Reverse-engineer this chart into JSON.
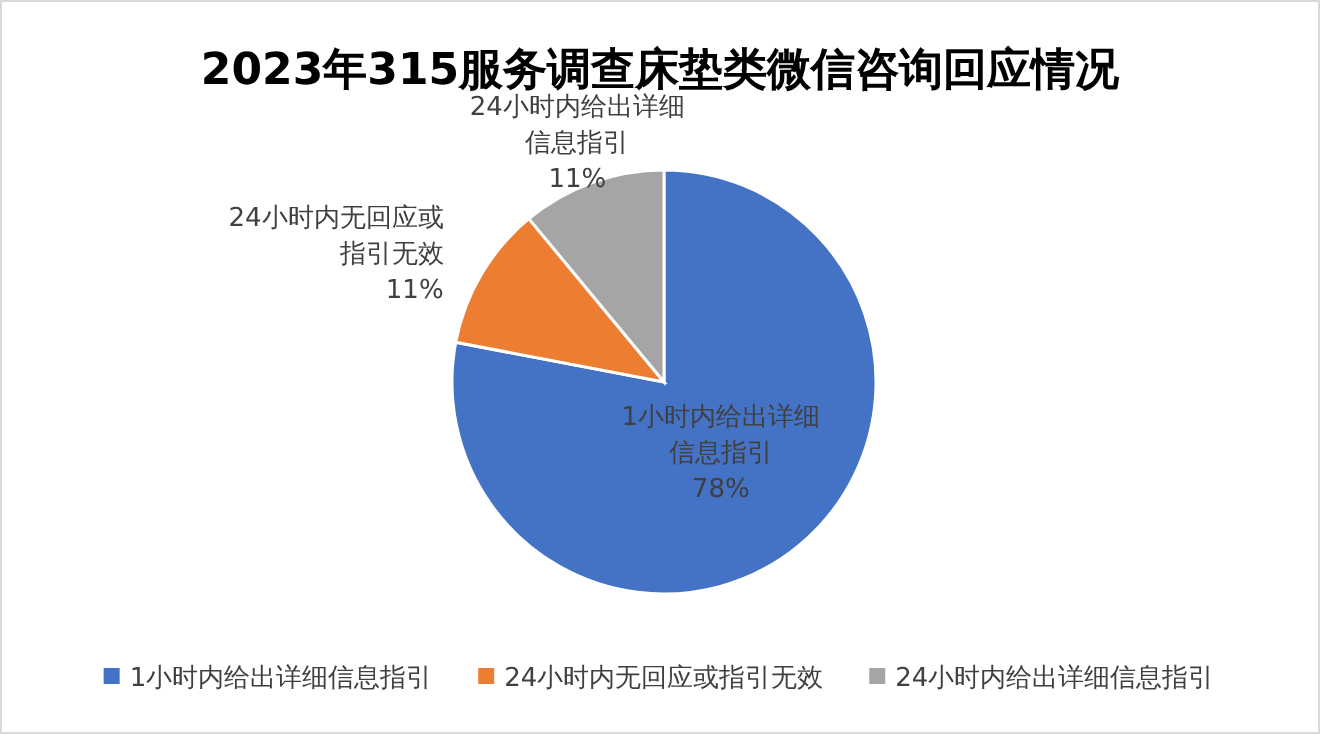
{
  "chart_data": {
    "type": "pie",
    "title": "2023年315服务调查床垫类微信咨询回应情况",
    "categories": [
      "1小时内给出详细信息指引",
      "24小时内无回应或指引无效",
      "24小时内给出详细信息指引"
    ],
    "values": [
      78,
      11,
      11
    ],
    "colors": [
      "#4472c4",
      "#ed7d31",
      "#a5a5a5"
    ],
    "value_labels": [
      "78%",
      "11%",
      "11%"
    ],
    "legend": "bottom"
  }
}
